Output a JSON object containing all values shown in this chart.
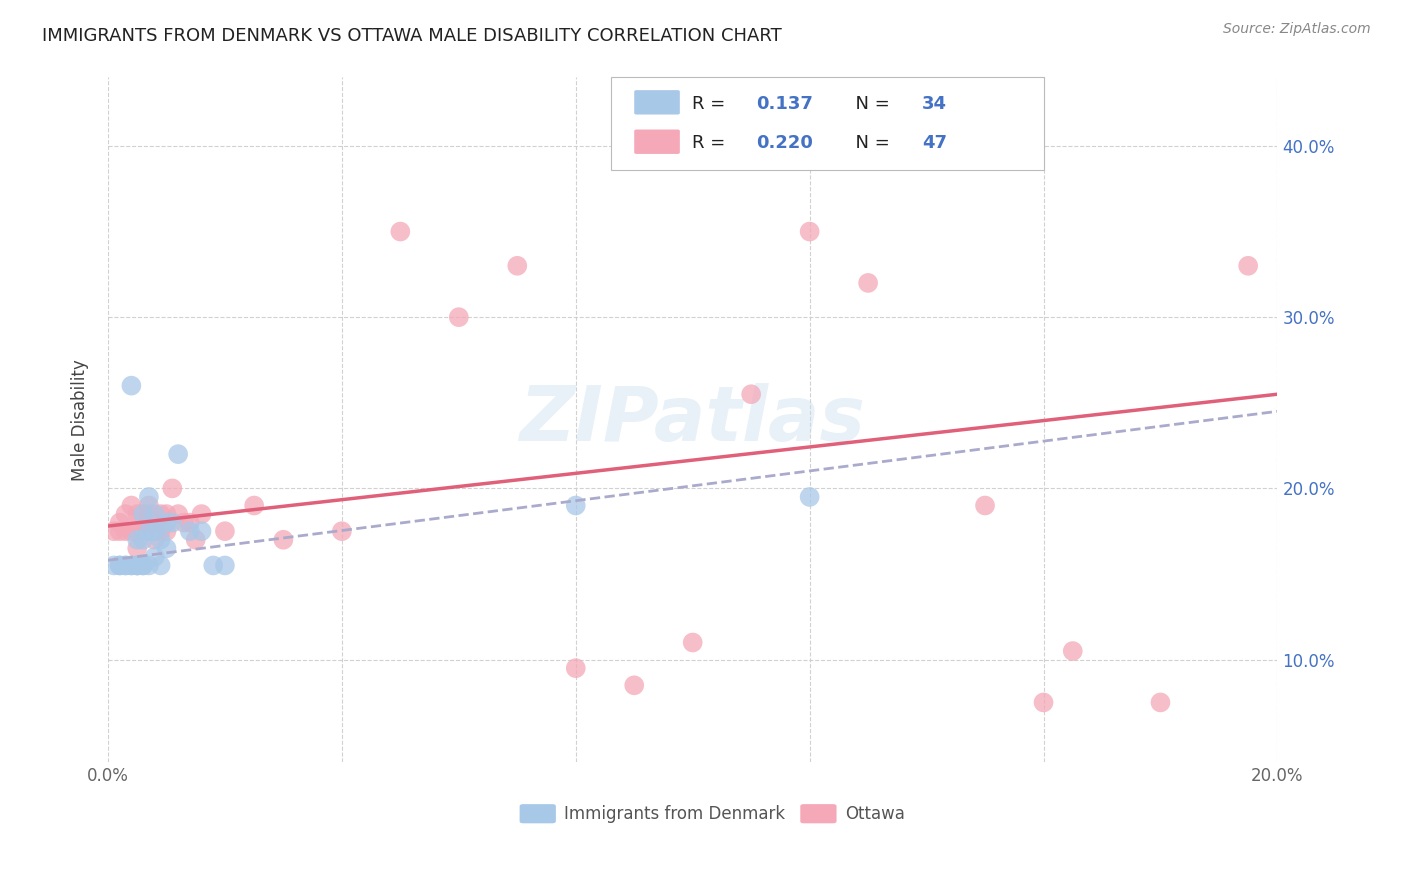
{
  "title": "IMMIGRANTS FROM DENMARK VS OTTAWA MALE DISABILITY CORRELATION CHART",
  "source": "Source: ZipAtlas.com",
  "ylabel": "Male Disability",
  "xlim": [
    0.0,
    0.2
  ],
  "ylim": [
    0.04,
    0.44
  ],
  "x_ticks": [
    0.0,
    0.04,
    0.08,
    0.12,
    0.16,
    0.2
  ],
  "y_ticks": [
    0.1,
    0.2,
    0.3,
    0.4
  ],
  "color_blue": "#a8c8e8",
  "color_pink": "#f4a8b8",
  "color_blue_line": "#5588cc",
  "color_pink_line": "#e0607a",
  "color_blue_text": "#4472c4",
  "denmark_scatter_x": [
    0.001,
    0.002,
    0.002,
    0.003,
    0.003,
    0.004,
    0.004,
    0.004,
    0.005,
    0.005,
    0.005,
    0.005,
    0.006,
    0.006,
    0.006,
    0.006,
    0.007,
    0.007,
    0.007,
    0.008,
    0.008,
    0.008,
    0.009,
    0.009,
    0.01,
    0.01,
    0.011,
    0.012,
    0.014,
    0.016,
    0.018,
    0.02,
    0.08,
    0.12
  ],
  "denmark_scatter_y": [
    0.155,
    0.155,
    0.155,
    0.155,
    0.155,
    0.155,
    0.155,
    0.26,
    0.155,
    0.155,
    0.155,
    0.17,
    0.155,
    0.155,
    0.17,
    0.185,
    0.155,
    0.175,
    0.195,
    0.16,
    0.175,
    0.185,
    0.155,
    0.17,
    0.165,
    0.18,
    0.18,
    0.22,
    0.175,
    0.175,
    0.155,
    0.155,
    0.19,
    0.195
  ],
  "ottawa_scatter_x": [
    0.001,
    0.002,
    0.002,
    0.003,
    0.003,
    0.004,
    0.004,
    0.005,
    0.005,
    0.005,
    0.006,
    0.006,
    0.006,
    0.007,
    0.007,
    0.007,
    0.008,
    0.008,
    0.008,
    0.009,
    0.009,
    0.01,
    0.01,
    0.011,
    0.012,
    0.013,
    0.014,
    0.015,
    0.016,
    0.02,
    0.025,
    0.03,
    0.04,
    0.05,
    0.06,
    0.07,
    0.08,
    0.09,
    0.1,
    0.11,
    0.12,
    0.13,
    0.15,
    0.16,
    0.165,
    0.18,
    0.195
  ],
  "ottawa_scatter_y": [
    0.175,
    0.18,
    0.175,
    0.185,
    0.175,
    0.19,
    0.175,
    0.185,
    0.175,
    0.165,
    0.185,
    0.18,
    0.175,
    0.19,
    0.175,
    0.185,
    0.18,
    0.17,
    0.175,
    0.185,
    0.175,
    0.175,
    0.185,
    0.2,
    0.185,
    0.18,
    0.18,
    0.17,
    0.185,
    0.175,
    0.19,
    0.17,
    0.175,
    0.35,
    0.3,
    0.33,
    0.095,
    0.085,
    0.11,
    0.255,
    0.35,
    0.32,
    0.19,
    0.075,
    0.105,
    0.075,
    0.33
  ],
  "denmark_line_x": [
    0.0,
    0.2
  ],
  "denmark_line_y": [
    0.158,
    0.245
  ],
  "ottawa_line_x": [
    0.0,
    0.2
  ],
  "ottawa_line_y": [
    0.178,
    0.255
  ],
  "watermark": "ZIPatlas",
  "bottom_legend_labels": [
    "Immigrants from Denmark",
    "Ottawa"
  ]
}
